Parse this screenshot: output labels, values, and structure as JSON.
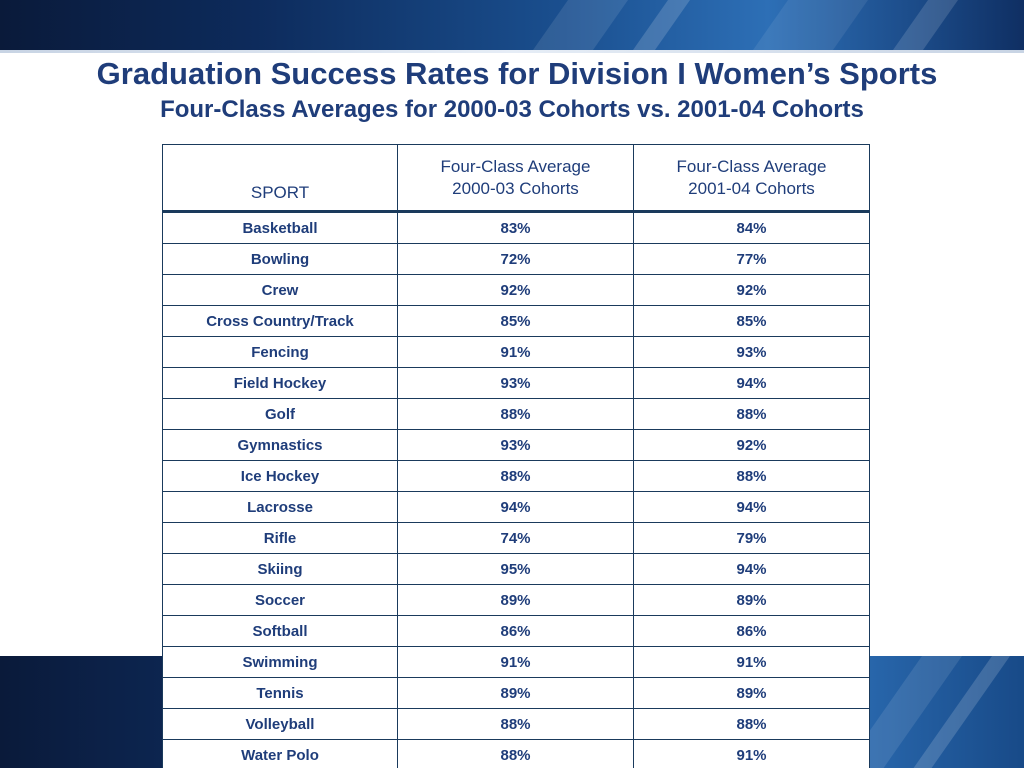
{
  "title": "Graduation Success Rates for Division I Women’s Sports",
  "subtitle": "Four-Class Averages for 2000-03 Cohorts vs. 2001-04 Cohorts",
  "table": {
    "headers": {
      "sport": "SPORT",
      "col1_line1": "Four-Class Average",
      "col1_line2": "2000-03 Cohorts",
      "col2_line1": "Four-Class Average",
      "col2_line2": "2001-04 Cohorts"
    },
    "rows": [
      {
        "sport": "Basketball",
        "a": "83%",
        "b": "84%"
      },
      {
        "sport": "Bowling",
        "a": "72%",
        "b": "77%"
      },
      {
        "sport": "Crew",
        "a": "92%",
        "b": "92%"
      },
      {
        "sport": "Cross Country/Track",
        "a": "85%",
        "b": "85%"
      },
      {
        "sport": "Fencing",
        "a": "91%",
        "b": "93%"
      },
      {
        "sport": "Field Hockey",
        "a": "93%",
        "b": "94%"
      },
      {
        "sport": "Golf",
        "a": "88%",
        "b": "88%"
      },
      {
        "sport": "Gymnastics",
        "a": "93%",
        "b": "92%"
      },
      {
        "sport": "Ice Hockey",
        "a": "88%",
        "b": "88%"
      },
      {
        "sport": "Lacrosse",
        "a": "94%",
        "b": "94%"
      },
      {
        "sport": "Rifle",
        "a": "74%",
        "b": "79%"
      },
      {
        "sport": "Skiing",
        "a": "95%",
        "b": "94%"
      },
      {
        "sport": "Soccer",
        "a": "89%",
        "b": "89%"
      },
      {
        "sport": "Softball",
        "a": "86%",
        "b": "86%"
      },
      {
        "sport": "Swimming",
        "a": "91%",
        "b": "91%"
      },
      {
        "sport": "Tennis",
        "a": "89%",
        "b": "89%"
      },
      {
        "sport": "Volleyball",
        "a": "88%",
        "b": "88%"
      },
      {
        "sport": "Water Polo",
        "a": "88%",
        "b": "91%"
      }
    ]
  },
  "colors": {
    "title_text": "#1f3d7a",
    "table_border": "#1a3a5c",
    "band_dark": "#0a1a3a",
    "band_light": "#2d6fb6"
  }
}
